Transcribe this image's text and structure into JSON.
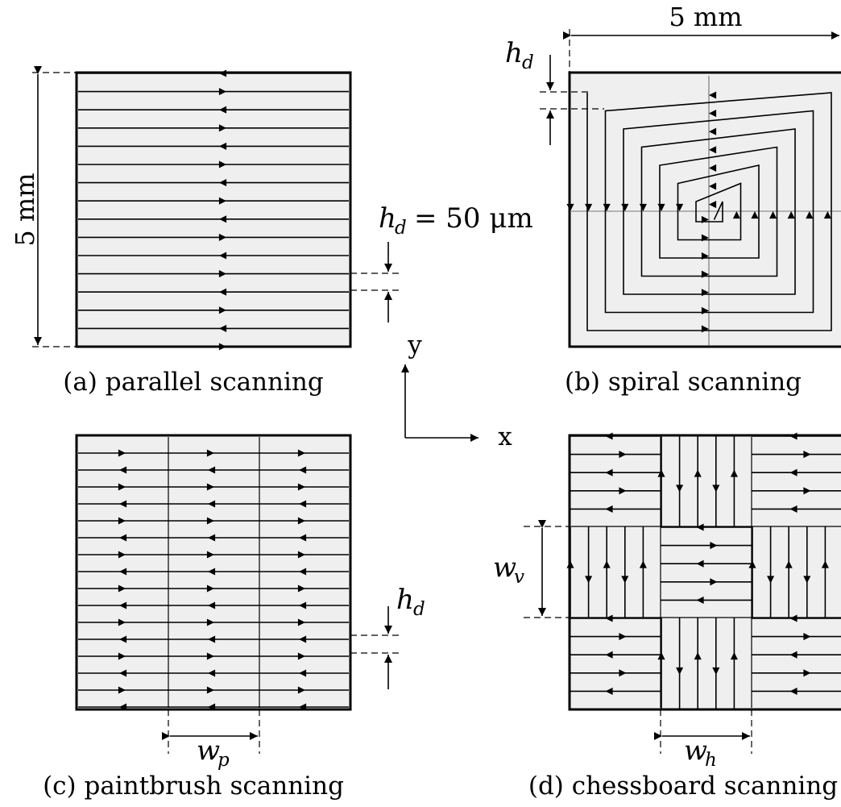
{
  "panels": {
    "a": {
      "caption": "(a) parallel scanning",
      "dimension": "5 mm"
    },
    "b": {
      "caption": "(b) spiral scanning",
      "dimension": "5 mm",
      "hatch_label": "h",
      "hatch_sub": "d"
    },
    "c": {
      "caption": "(c) paintbrush scanning",
      "width_label": "w",
      "width_sub": "p",
      "hatch_label": "h",
      "hatch_sub": "d"
    },
    "d": {
      "caption": "(d) chessboard scanning",
      "vert_label": "w",
      "vert_sub": "v",
      "horiz_label": "w",
      "horiz_sub": "h"
    }
  },
  "hatch_distance": {
    "symbol": "h",
    "sub": "d",
    "value": "= 50 μm"
  },
  "axes": {
    "x": "x",
    "y": "y"
  },
  "colors": {
    "fill": "#efefef",
    "stroke": "#000000"
  }
}
